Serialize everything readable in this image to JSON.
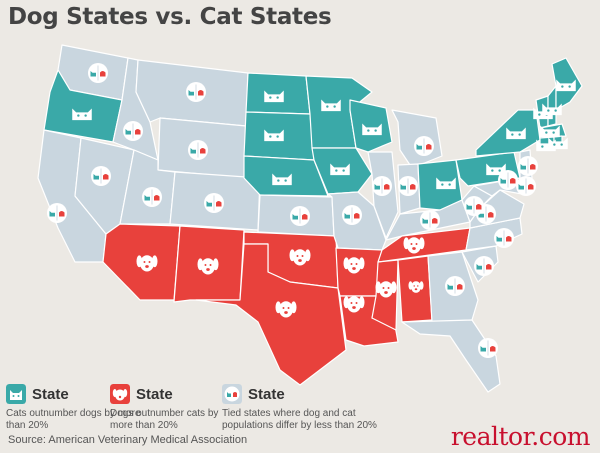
{
  "title": "Dog States vs. Cat States",
  "colors": {
    "cat": "#3aa9a8",
    "dog": "#e8413c",
    "tie": "#c9d6df",
    "border": "#ffffff",
    "background": "#ece9e4"
  },
  "states": [
    {
      "code": "WA",
      "category": "tie"
    },
    {
      "code": "OR",
      "category": "cat"
    },
    {
      "code": "CA",
      "category": "tie"
    },
    {
      "code": "NV",
      "category": "tie"
    },
    {
      "code": "ID",
      "category": "tie"
    },
    {
      "code": "MT",
      "category": "tie"
    },
    {
      "code": "WY",
      "category": "tie"
    },
    {
      "code": "UT",
      "category": "tie"
    },
    {
      "code": "CO",
      "category": "tie"
    },
    {
      "code": "AZ",
      "category": "dog"
    },
    {
      "code": "NM",
      "category": "dog"
    },
    {
      "code": "ND",
      "category": "cat"
    },
    {
      "code": "SD",
      "category": "cat"
    },
    {
      "code": "NE",
      "category": "cat"
    },
    {
      "code": "KS",
      "category": "tie"
    },
    {
      "code": "OK",
      "category": "dog"
    },
    {
      "code": "TX",
      "category": "dog"
    },
    {
      "code": "MN",
      "category": "cat"
    },
    {
      "code": "IA",
      "category": "cat"
    },
    {
      "code": "MO",
      "category": "tie"
    },
    {
      "code": "AR",
      "category": "dog"
    },
    {
      "code": "LA",
      "category": "dog"
    },
    {
      "code": "WI",
      "category": "cat"
    },
    {
      "code": "IL",
      "category": "tie"
    },
    {
      "code": "MI",
      "category": "tie"
    },
    {
      "code": "IN",
      "category": "tie"
    },
    {
      "code": "OH",
      "category": "cat"
    },
    {
      "code": "KY",
      "category": "tie"
    },
    {
      "code": "TN",
      "category": "dog"
    },
    {
      "code": "MS",
      "category": "dog"
    },
    {
      "code": "AL",
      "category": "dog"
    },
    {
      "code": "GA",
      "category": "tie"
    },
    {
      "code": "FL",
      "category": "tie"
    },
    {
      "code": "SC",
      "category": "tie"
    },
    {
      "code": "NC",
      "category": "tie"
    },
    {
      "code": "VA",
      "category": "tie"
    },
    {
      "code": "WV",
      "category": "tie"
    },
    {
      "code": "PA",
      "category": "cat"
    },
    {
      "code": "NY",
      "category": "cat"
    },
    {
      "code": "VT",
      "category": "cat"
    },
    {
      "code": "NH",
      "category": "cat"
    },
    {
      "code": "ME",
      "category": "cat"
    },
    {
      "code": "MA",
      "category": "cat"
    },
    {
      "code": "CT",
      "category": "cat"
    },
    {
      "code": "RI",
      "category": "cat"
    },
    {
      "code": "NJ",
      "category": "tie"
    },
    {
      "code": "DE",
      "category": "tie"
    },
    {
      "code": "MD",
      "category": "tie"
    }
  ],
  "legend": [
    {
      "category": "cat",
      "label": "State",
      "description": "Cats outnumber dogs by more than 20%"
    },
    {
      "category": "dog",
      "label": "State",
      "description": "Dogs outnumber cats by more than 20%"
    },
    {
      "category": "tie",
      "label": "State",
      "description": "Tied states where dog and cat populations differ by less than 20%"
    }
  ],
  "source": "Source: American Veterinary Medical Association",
  "brand": "realtor.com"
}
